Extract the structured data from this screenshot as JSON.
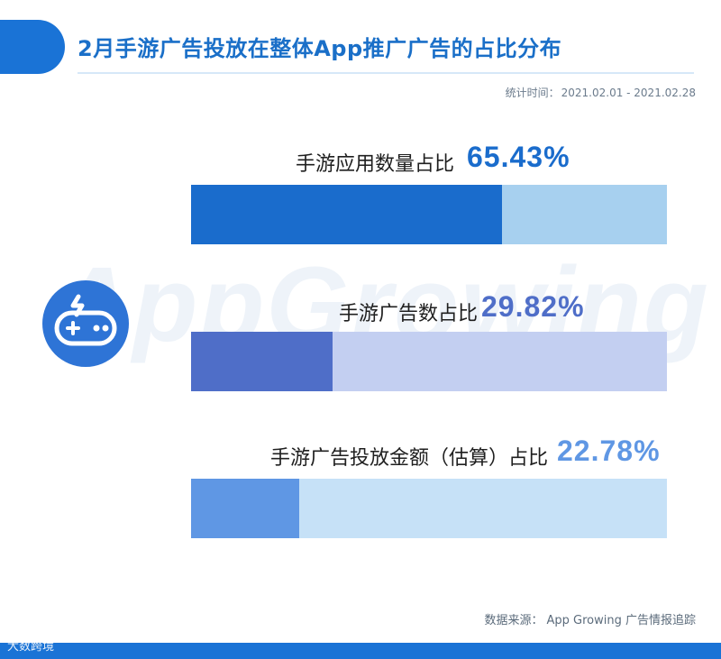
{
  "header": {
    "title": "2月手游广告投放在整体App推广广告的占比分布",
    "period_label": "统计时间：",
    "period_range": "2021.02.01 - 2021.02.28"
  },
  "watermark": "AppGrowing",
  "icon": "gamepad-icon",
  "chart_data": {
    "type": "bar",
    "orientation": "horizontal",
    "xlim": [
      0,
      100
    ],
    "unit": "%",
    "categories": [
      "手游应用数量占比",
      "手游广告数占比",
      "手游广告投放金额（估算）占比"
    ],
    "values": [
      65.43,
      29.82,
      22.78
    ],
    "value_labels": [
      "65.43%",
      "29.82%",
      "22.78%"
    ],
    "colors": [
      {
        "fill": "#1a6ccc",
        "track": "#a7d0ef",
        "text": "#1a6ccc"
      },
      {
        "fill": "#4f6ec8",
        "track": "#c3cff1",
        "text": "#4f6ec8"
      },
      {
        "fill": "#5f97e4",
        "track": "#c6e1f7",
        "text": "#5f97e4"
      }
    ]
  },
  "footer": {
    "source_label": "数据来源：",
    "source_text": "App Growing 广告情报追踪",
    "logo_text": "大数跨境"
  }
}
